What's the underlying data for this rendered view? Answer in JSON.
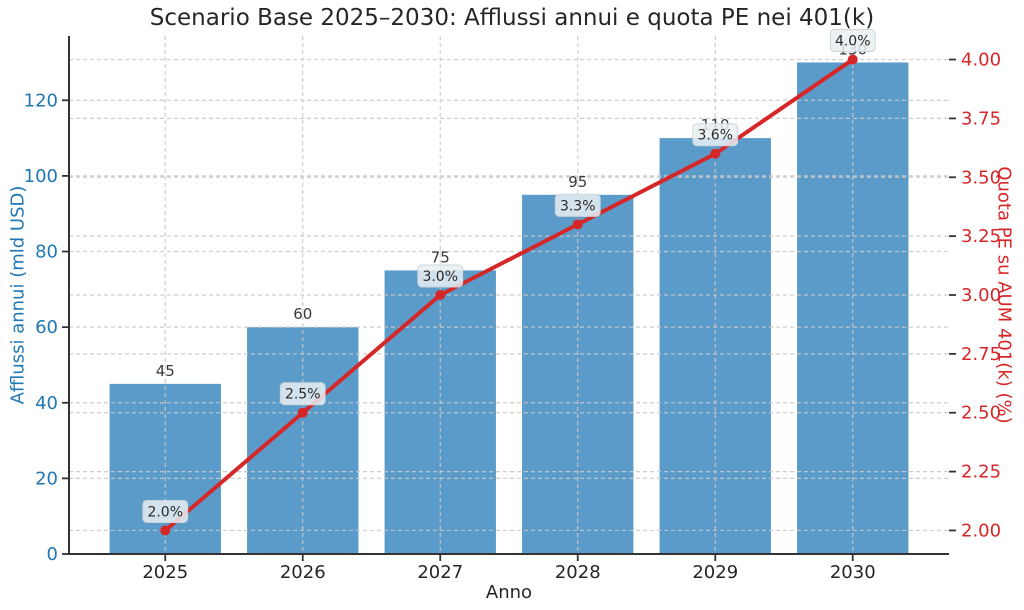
{
  "title": "Scenario Base 2025–2030: Afflussi annui e quota PE nei 401(k)",
  "chart_data": {
    "type": "bar+line dual-axis",
    "title": "Scenario Base 2025–2030: Afflussi annui e quota PE nei 401(k)",
    "categories": [
      "2025",
      "2026",
      "2027",
      "2028",
      "2029",
      "2030"
    ],
    "series": [
      {
        "name": "Afflussi annui",
        "type": "bar",
        "axis": "left",
        "values": [
          45,
          60,
          75,
          95,
          110,
          130
        ],
        "labels": [
          "45",
          "60",
          "75",
          "95",
          "110",
          "130"
        ]
      },
      {
        "name": "Quota PE su AUM 401(k)",
        "type": "line",
        "axis": "right",
        "values": [
          2.0,
          2.5,
          3.0,
          3.3,
          3.6,
          4.0
        ],
        "labels": [
          "2.0%",
          "2.5%",
          "3.0%",
          "3.3%",
          "3.6%",
          "4.0%"
        ]
      }
    ],
    "xlabel": "Anno",
    "ylabel_left": "Afflussi annui (mld USD)",
    "ylabel_right": "Quota PE su AUM 401(k) (%)",
    "ylim_left": [
      0,
      137
    ],
    "ylim_right": [
      1.9,
      4.1
    ],
    "yticks_left": {
      "values": [
        0,
        20,
        40,
        60,
        80,
        100,
        120
      ],
      "labels": [
        "0",
        "20",
        "40",
        "60",
        "80",
        "100",
        "120"
      ]
    },
    "yticks_right": {
      "values": [
        2.0,
        2.25,
        2.5,
        2.75,
        3.0,
        3.25,
        3.5,
        3.75,
        4.0
      ],
      "labels": [
        "2.00",
        "2.25",
        "2.50",
        "2.75",
        "3.00",
        "3.25",
        "3.50",
        "3.75",
        "4.00"
      ]
    },
    "grid": true,
    "legend": "none"
  },
  "colors": {
    "bar": "#5b9bc9",
    "line": "#d62728",
    "left_axis_text": "#1f77b4",
    "right_axis_text": "#d62728",
    "grid": "#c9c9c9",
    "spine": "#333333",
    "annotation_box_fill": "#e9eef2",
    "annotation_box_border": "#ccd5db",
    "text_dark": "#262626"
  }
}
